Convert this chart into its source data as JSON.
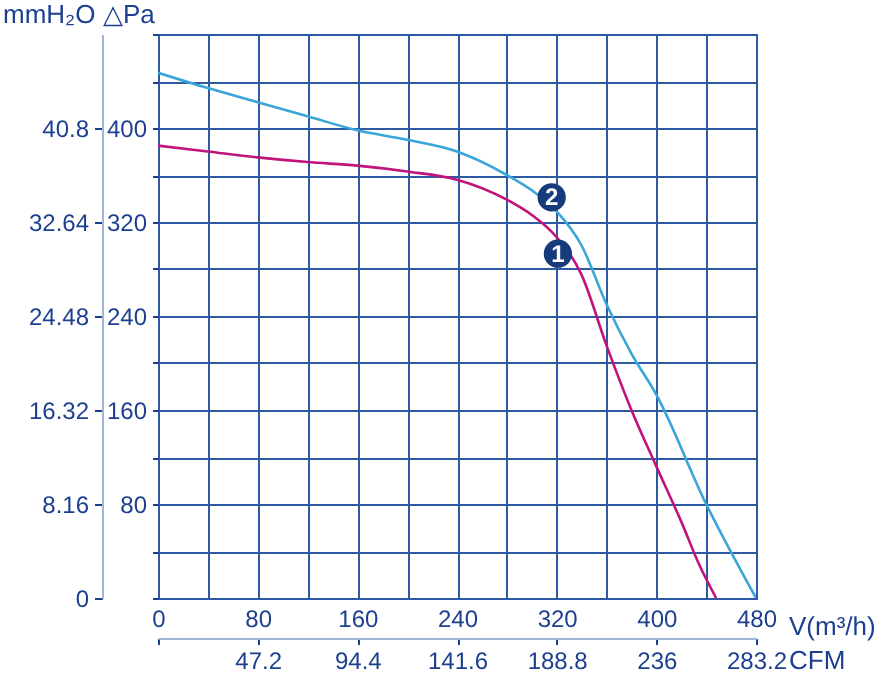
{
  "chart_data": {
    "type": "line",
    "x": [
      0,
      40,
      80,
      120,
      160,
      200,
      240,
      280,
      300,
      320,
      340,
      360,
      380,
      400,
      420,
      435,
      448
    ],
    "series": [
      {
        "color": "#3aa5d8",
        "x": [
          0,
          40,
          80,
          120,
          160,
          200,
          240,
          280,
          300,
          320,
          340,
          360,
          380,
          400,
          440,
          480
        ],
        "values": [
          447,
          434,
          422,
          410,
          398,
          390,
          380,
          360,
          347,
          329,
          300,
          250,
          208,
          173,
          80,
          0
        ]
      },
      {
        "color": "#c0147c",
        "values": [
          385,
          380,
          375,
          371,
          368,
          363,
          356,
          339,
          326,
          307,
          275,
          215,
          160,
          112,
          65,
          27,
          0
        ]
      }
    ],
    "xlabel": "V(m³/h)",
    "ylabel": "△Pa",
    "y2label": "mmH₂O",
    "x2label": "CFM",
    "xlim": [
      0,
      480
    ],
    "ylim": [
      0,
      480
    ],
    "y2lim": [
      0,
      48.96
    ],
    "x2lim": [
      0,
      283.2
    ],
    "xticks": [
      0,
      {
        "value": 40,
        "label": null
      },
      80,
      {
        "value": 120,
        "label": null
      },
      160,
      {
        "value": 200,
        "label": null
      },
      240,
      {
        "value": 280,
        "label": null
      },
      320,
      {
        "value": 360,
        "label": null
      },
      400,
      {
        "value": 440,
        "label": null
      },
      480
    ],
    "yticks": [
      {
        "value": 0,
        "label": null
      },
      {
        "value": 40,
        "label": null
      },
      80,
      {
        "value": 120,
        "label": null
      },
      160,
      {
        "value": 200,
        "label": null
      },
      240,
      {
        "value": 280,
        "label": null
      },
      320,
      {
        "value": 360,
        "label": null
      },
      400,
      {
        "value": 440,
        "label": null
      },
      {
        "value": 480,
        "label": null
      }
    ],
    "y2ticks": [
      0,
      8.16,
      16.32,
      24.48,
      32.64,
      40.8
    ],
    "x2ticks": [
      {
        "value": 0,
        "label": null
      },
      47.2,
      94.4,
      141.6,
      188.8,
      236,
      283.2
    ],
    "annotations": [
      {
        "text": "2",
        "x": 316,
        "y": 341
      },
      {
        "text": "1",
        "x": 321,
        "y": 293
      }
    ],
    "grid": true,
    "line_style": "solid"
  }
}
